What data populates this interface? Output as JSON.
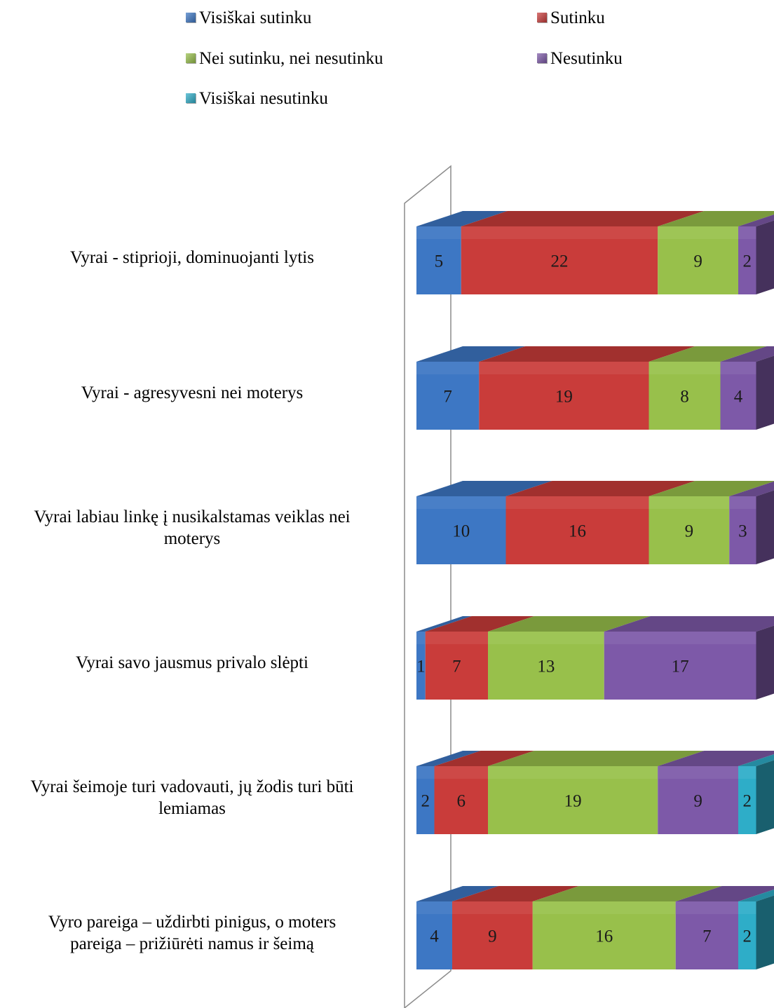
{
  "chart_data": {
    "type": "bar",
    "orientation": "horizontal",
    "stacked": true,
    "three_d": true,
    "legend_position": "top",
    "categories": [
      "Vyrai - stiprioji, dominuojanti lytis",
      "Vyrai - agresyvesni nei moterys",
      "Vyrai labiau linkę į nusikalstamas veiklas nei moterys",
      "Vyrai savo jausmus privalo slėpti",
      "Vyrai šeimoje turi vadovauti, jų žodis turi būti lemiamas",
      "Vyro pareiga – uždirbti pinigus, o moters pareiga – prižiūrėti namus ir šeimą"
    ],
    "category_lines": [
      [
        "Vyrai - stiprioji, dominuojanti lytis"
      ],
      [
        "Vyrai - agresyvesni nei moterys"
      ],
      [
        "Vyrai labiau linkę į nusikalstamas veiklas nei",
        "moterys"
      ],
      [
        "Vyrai savo jausmus privalo slėpti"
      ],
      [
        "Vyrai šeimoje turi vadovauti, jų žodis turi būti",
        "lemiamas"
      ],
      [
        "Vyro pareiga – uždirbti pinigus, o moters",
        "pareiga – prižiūrėti namus ir šeimą"
      ]
    ],
    "series": [
      {
        "name": "Visiškai sutinku",
        "color": "#3D77C4",
        "values": [
          5,
          7,
          10,
          1,
          2,
          4
        ]
      },
      {
        "name": "Sutinku",
        "color": "#C93C3A",
        "values": [
          22,
          19,
          16,
          7,
          6,
          9
        ]
      },
      {
        "name": "Nei sutinku, nei nesutinku",
        "color": "#98C04B",
        "values": [
          9,
          8,
          9,
          13,
          19,
          16
        ]
      },
      {
        "name": "Nesutinku",
        "color": "#7D59A8",
        "values": [
          2,
          4,
          3,
          17,
          9,
          7
        ]
      },
      {
        "name": "Visiškai nesutinku",
        "color": "#2EADC8",
        "values": [
          0,
          0,
          0,
          0,
          2,
          2
        ]
      }
    ]
  }
}
